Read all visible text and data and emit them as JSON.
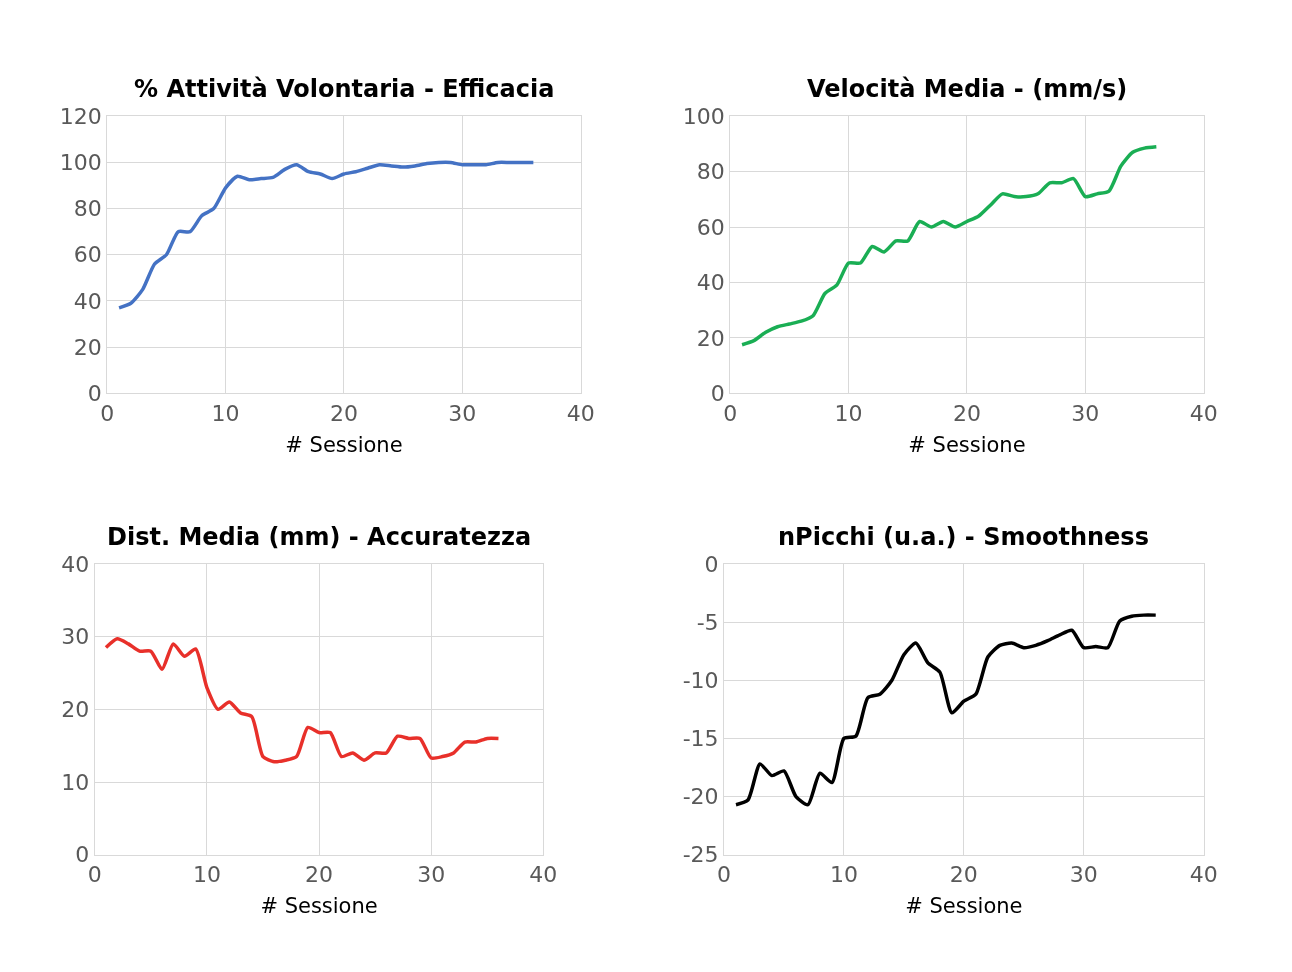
{
  "chart_data": [
    {
      "type": "line",
      "title": "% Attività Volontaria - Efficacia",
      "xlabel": "# Sessione",
      "x": [
        1,
        2,
        3,
        4,
        5,
        6,
        7,
        8,
        9,
        10,
        11,
        12,
        13,
        14,
        15,
        16,
        17,
        18,
        19,
        20,
        21,
        22,
        23,
        24,
        25,
        26,
        27,
        28,
        29,
        30,
        31,
        32,
        33,
        34,
        35,
        36
      ],
      "series": [
        {
          "color": "#4472c4",
          "values": [
            37,
            39,
            45,
            56,
            60,
            70,
            70,
            77,
            80,
            89,
            94,
            92.5,
            93,
            93.5,
            97,
            99,
            96,
            95,
            93,
            95,
            96,
            97.5,
            99,
            98.5,
            98,
            98.5,
            99.5,
            100,
            100,
            99,
            99,
            99,
            100,
            100,
            100,
            100
          ]
        }
      ],
      "xlim": [
        0,
        40
      ],
      "xticks": [
        0,
        10,
        20,
        30,
        40
      ],
      "ylim": [
        0,
        120
      ],
      "yticks": [
        0,
        20,
        40,
        60,
        80,
        100,
        120
      ],
      "grid": true,
      "marker": "none",
      "line_style": "solid"
    },
    {
      "type": "line",
      "title": "Velocità Media - (mm/s)",
      "xlabel": "# Sessione",
      "x": [
        1,
        2,
        3,
        4,
        5,
        6,
        7,
        8,
        9,
        10,
        11,
        12,
        13,
        14,
        15,
        16,
        17,
        18,
        19,
        20,
        21,
        22,
        23,
        24,
        25,
        26,
        27,
        28,
        29,
        30,
        31,
        32,
        33,
        34,
        35,
        36
      ],
      "series": [
        {
          "color": "#1aae54",
          "values": [
            17.5,
            19,
            22,
            24,
            25,
            26,
            28,
            36,
            39,
            47,
            47,
            53,
            51,
            55,
            55,
            62,
            60,
            62,
            60,
            62,
            64,
            68,
            72,
            71,
            71,
            72,
            76,
            76,
            77.5,
            71,
            72,
            73,
            82,
            87,
            88.5,
            89
          ]
        }
      ],
      "xlim": [
        0,
        40
      ],
      "xticks": [
        0,
        10,
        20,
        30,
        40
      ],
      "ylim": [
        0,
        100
      ],
      "yticks": [
        0,
        20,
        40,
        60,
        80,
        100
      ],
      "grid": true,
      "marker": "none",
      "line_style": "solid"
    },
    {
      "type": "line",
      "title": "Dist. Media (mm) - Accuratezza",
      "xlabel": "# Sessione",
      "x": [
        1,
        2,
        3,
        4,
        5,
        6,
        7,
        8,
        9,
        10,
        11,
        12,
        13,
        14,
        15,
        16,
        17,
        18,
        19,
        20,
        21,
        22,
        23,
        24,
        25,
        26,
        27,
        28,
        29,
        30,
        31,
        32,
        33,
        34,
        35,
        36
      ],
      "series": [
        {
          "color": "#e8302a",
          "values": [
            28.5,
            29.7,
            29,
            28,
            28,
            25.5,
            29,
            27.3,
            28.3,
            23,
            20,
            21,
            19.5,
            19,
            13.5,
            12.8,
            13,
            13.5,
            17.5,
            16.8,
            16.8,
            13.5,
            14,
            13,
            14,
            14,
            16.3,
            16,
            16,
            13.3,
            13.5,
            14,
            15.5,
            15.5,
            16,
            16
          ]
        }
      ],
      "xlim": [
        0,
        40
      ],
      "xticks": [
        0,
        10,
        20,
        30,
        40
      ],
      "ylim": [
        0,
        40
      ],
      "yticks": [
        0,
        10,
        20,
        30,
        40
      ],
      "grid": true,
      "marker": "none",
      "line_style": "solid"
    },
    {
      "type": "line",
      "title": "nPicchi (u.a.) - Smoothness",
      "xlabel": "# Sessione",
      "x": [
        1,
        2,
        3,
        4,
        5,
        6,
        7,
        8,
        9,
        10,
        11,
        12,
        13,
        14,
        15,
        16,
        17,
        18,
        19,
        20,
        21,
        22,
        23,
        24,
        25,
        26,
        27,
        28,
        29,
        30,
        31,
        32,
        33,
        34,
        35,
        36
      ],
      "series": [
        {
          "color": "#000000",
          "values": [
            -20.7,
            -20.3,
            -17.2,
            -18.2,
            -17.8,
            -20,
            -20.7,
            -18,
            -18.8,
            -15,
            -14.8,
            -11.5,
            -11.2,
            -10,
            -7.8,
            -6.8,
            -8.5,
            -9.3,
            -12.8,
            -11.8,
            -11.2,
            -8,
            -7,
            -6.8,
            -7.2,
            -7,
            -6.6,
            -6.1,
            -5.7,
            -7.2,
            -7.1,
            -7.2,
            -4.9,
            -4.5,
            -4.4,
            -4.4
          ]
        }
      ],
      "xlim": [
        0,
        40
      ],
      "xticks": [
        0,
        10,
        20,
        30,
        40
      ],
      "ylim": [
        -25,
        0
      ],
      "yticks": [
        -25,
        -20,
        -15,
        -10,
        -5,
        0
      ],
      "grid": true,
      "marker": "none",
      "line_style": "solid"
    }
  ]
}
